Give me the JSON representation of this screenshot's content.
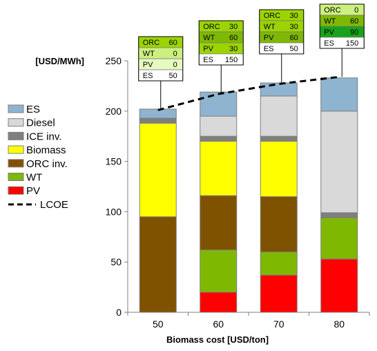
{
  "chart_data": {
    "type": "bar",
    "stacked": true,
    "ylabel": "[USD/MWh]",
    "xlabel": "Biomass cost [USD/ton]",
    "categories": [
      "50",
      "60",
      "70",
      "80"
    ],
    "ylim": [
      0,
      250
    ],
    "yticks": [
      0,
      50,
      100,
      150,
      200,
      250
    ],
    "grid": false,
    "legend_position": "left",
    "series": [
      {
        "name": "PV",
        "color": "#ff0000",
        "values": [
          0,
          20,
          37,
          53
        ]
      },
      {
        "name": " WT",
        "color": "#7fb800",
        "values": [
          0,
          42,
          23,
          41
        ]
      },
      {
        "name": "ORC inv.",
        "color": "#7f5200",
        "values": [
          95,
          54,
          55,
          0
        ]
      },
      {
        "name": "Biomass",
        "color": "#ffff00",
        "values": [
          93,
          54,
          55,
          0
        ]
      },
      {
        "name": "ICE inv.",
        "color": "#7f7f7f",
        "values": [
          5,
          5,
          5,
          5
        ]
      },
      {
        "name": "Diesel",
        "color": "#d9d9d9",
        "values": [
          0,
          20,
          40,
          101
        ]
      },
      {
        "name": "ES",
        "color": "#8eb4cf",
        "values": [
          9,
          24,
          13,
          33
        ]
      }
    ],
    "lcoe": {
      "name": "LCOE",
      "values": [
        201,
        217,
        227,
        234
      ]
    },
    "annotations": [
      {
        "category": "50",
        "rows": [
          [
            "ORC",
            "60"
          ],
          [
            "WT",
            "0"
          ],
          [
            "PV",
            "0"
          ],
          [
            "ES",
            "50"
          ]
        ],
        "fills": [
          "#9bd400",
          "#ccf07f",
          "#e6f9bf",
          "#ffffff"
        ]
      },
      {
        "category": "60",
        "rows": [
          [
            "ORC",
            "30"
          ],
          [
            "WT",
            "60"
          ],
          [
            "PV",
            "30"
          ],
          [
            "ES",
            "150"
          ]
        ],
        "fills": [
          "#9bd400",
          "#7fb800",
          "#9bd400",
          "#ffffff"
        ]
      },
      {
        "category": "70",
        "rows": [
          [
            "ORC",
            "30"
          ],
          [
            "WT",
            "30"
          ],
          [
            "PV",
            "60"
          ],
          [
            "ES",
            "50"
          ]
        ],
        "fills": [
          "#9bd400",
          "#9bd400",
          "#7fb800",
          "#ffffff"
        ]
      },
      {
        "category": "80",
        "rows": [
          [
            "ORC",
            "0"
          ],
          [
            "WT",
            "60"
          ],
          [
            "PV",
            "90"
          ],
          [
            "ES",
            "150"
          ]
        ],
        "fills": [
          "#ccf07f",
          "#7fb800",
          "#1aa31a",
          "#ffffff"
        ]
      }
    ]
  }
}
